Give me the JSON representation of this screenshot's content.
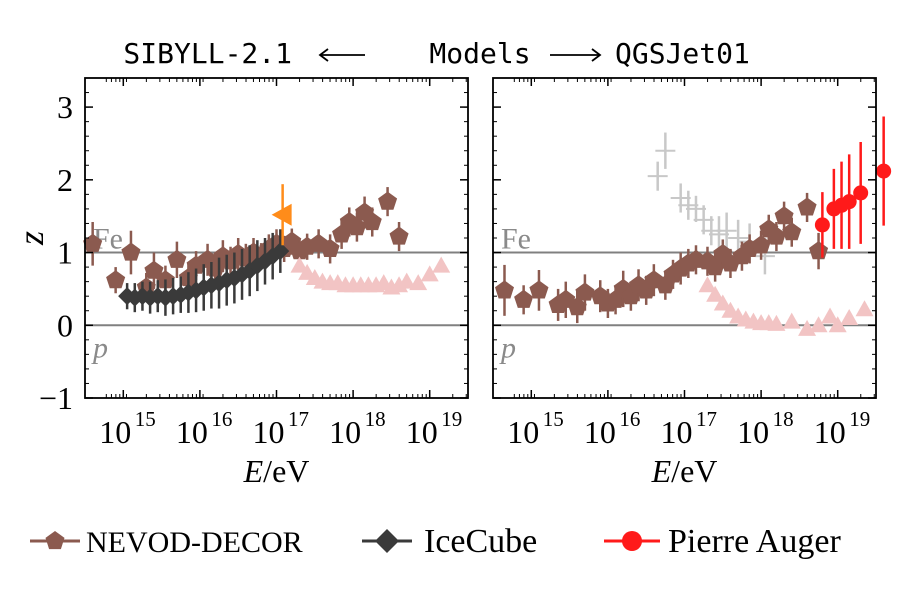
{
  "header": {
    "left_model": "SIBYLL-2.1",
    "center": "Models",
    "right_model": "QGSJet01"
  },
  "colors": {
    "nevod": "#8B5A4F",
    "icecube": "#3a3a3a",
    "auger": "#ff1a1a",
    "orange": "#ff8c1a",
    "faint_triangles": "#f2c4c4",
    "faint_crosses": "#c8c8c8",
    "reference_lines": "#808080"
  },
  "legend": {
    "items": [
      {
        "label": "NEVOD-DECOR",
        "marker": "pentagon",
        "color": "#8B5A4F"
      },
      {
        "label": "IceCube",
        "marker": "diamond",
        "color": "#3a3a3a"
      },
      {
        "label": "Pierre Auger",
        "marker": "circle",
        "color": "#ff1a1a"
      }
    ]
  },
  "chart_data": [
    {
      "type": "scatter",
      "panel": "SIBYLL-2.1",
      "ylabel": "z",
      "xlabel_italic": "E",
      "xlabel_unit": "/eV",
      "x_scale": "log",
      "xlim_log10": [
        14.5,
        19.5
      ],
      "ylim": [
        -1,
        3.4
      ],
      "x_ticks": [
        {
          "base": "10",
          "exp": "15"
        },
        {
          "base": "10",
          "exp": "16"
        },
        {
          "base": "10",
          "exp": "17"
        },
        {
          "base": "10",
          "exp": "18"
        },
        {
          "base": "10",
          "exp": "19"
        }
      ],
      "x_tick_values_log10": [
        15,
        16,
        17,
        18,
        19
      ],
      "y_ticks": [
        "−1",
        "0",
        "1",
        "2",
        "3"
      ],
      "y_tick_values": [
        -1,
        0,
        1,
        2,
        3
      ],
      "reference_lines": [
        {
          "y": 1,
          "label": "Fe"
        },
        {
          "y": 0,
          "label": "p"
        }
      ],
      "series": [
        {
          "name": "NEVOD-DECOR",
          "marker": "pentagon",
          "color": "#8B5A4F",
          "points": [
            [
              14.6,
              1.12,
              0.3
            ],
            [
              14.9,
              0.62,
              0.18
            ],
            [
              15.1,
              1.0,
              0.3
            ],
            [
              15.3,
              0.52,
              0.2
            ],
            [
              15.4,
              0.75,
              0.25
            ],
            [
              15.55,
              0.62,
              0.2
            ],
            [
              15.7,
              0.9,
              0.25
            ],
            [
              15.85,
              0.65,
              0.2
            ],
            [
              15.95,
              0.82,
              0.2
            ],
            [
              16.1,
              0.9,
              0.22
            ],
            [
              16.2,
              0.78,
              0.2
            ],
            [
              16.3,
              0.95,
              0.22
            ],
            [
              16.4,
              0.88,
              0.2
            ],
            [
              16.5,
              0.98,
              0.22
            ],
            [
              16.6,
              0.92,
              0.2
            ],
            [
              16.7,
              1.0,
              0.2
            ],
            [
              16.8,
              0.95,
              0.18
            ],
            [
              16.9,
              1.05,
              0.2
            ],
            [
              17.0,
              1.12,
              0.2
            ],
            [
              17.1,
              1.05,
              0.18
            ],
            [
              17.2,
              1.15,
              0.18
            ],
            [
              17.3,
              1.02,
              0.18
            ],
            [
              17.4,
              1.08,
              0.18
            ],
            [
              17.55,
              1.12,
              0.2
            ],
            [
              17.7,
              1.05,
              0.2
            ],
            [
              17.85,
              1.25,
              0.2
            ],
            [
              17.95,
              1.42,
              0.2
            ],
            [
              18.05,
              1.35,
              0.2
            ],
            [
              18.15,
              1.55,
              0.22
            ],
            [
              18.25,
              1.42,
              0.2
            ],
            [
              18.45,
              1.7,
              0.2
            ],
            [
              18.6,
              1.22,
              0.2
            ]
          ]
        },
        {
          "name": "IceCube",
          "marker": "diamond",
          "color": "#3a3a3a",
          "points": [
            [
              15.05,
              0.4,
              0.18
            ],
            [
              15.15,
              0.38,
              0.2
            ],
            [
              15.25,
              0.4,
              0.2
            ],
            [
              15.35,
              0.38,
              0.22
            ],
            [
              15.45,
              0.4,
              0.22
            ],
            [
              15.55,
              0.38,
              0.25
            ],
            [
              15.65,
              0.4,
              0.25
            ],
            [
              15.75,
              0.42,
              0.25
            ],
            [
              15.85,
              0.45,
              0.28
            ],
            [
              15.95,
              0.48,
              0.3
            ],
            [
              16.05,
              0.52,
              0.32
            ],
            [
              16.15,
              0.55,
              0.32
            ],
            [
              16.25,
              0.58,
              0.35
            ],
            [
              16.35,
              0.62,
              0.35
            ],
            [
              16.45,
              0.65,
              0.35
            ],
            [
              16.55,
              0.7,
              0.35
            ],
            [
              16.65,
              0.75,
              0.35
            ],
            [
              16.75,
              0.82,
              0.35
            ],
            [
              16.85,
              0.88,
              0.32
            ],
            [
              16.95,
              0.95,
              0.32
            ],
            [
              17.05,
              1.02,
              0.3
            ]
          ]
        },
        {
          "marker": "triangle-left",
          "color": "#ff8c1a",
          "points": [
            [
              17.08,
              1.52,
              0.42
            ]
          ]
        },
        {
          "marker": "triangle",
          "color": "#f2c4c4",
          "points": [
            [
              17.3,
              0.82
            ],
            [
              17.4,
              0.72
            ],
            [
              17.5,
              0.65
            ],
            [
              17.6,
              0.6
            ],
            [
              17.7,
              0.58
            ],
            [
              17.8,
              0.58
            ],
            [
              17.9,
              0.55
            ],
            [
              18.0,
              0.55
            ],
            [
              18.1,
              0.55
            ],
            [
              18.2,
              0.55
            ],
            [
              18.3,
              0.55
            ],
            [
              18.4,
              0.58
            ],
            [
              18.5,
              0.52
            ],
            [
              18.6,
              0.55
            ],
            [
              18.7,
              0.6
            ],
            [
              18.85,
              0.58
            ],
            [
              19.0,
              0.7
            ],
            [
              19.15,
              0.82
            ]
          ]
        }
      ]
    },
    {
      "type": "scatter",
      "panel": "QGSJet01",
      "xlabel_italic": "E",
      "xlabel_unit": "/eV",
      "x_scale": "log",
      "xlim_log10": [
        14.5,
        19.5
      ],
      "ylim": [
        -1,
        3.4
      ],
      "x_ticks": [
        {
          "base": "10",
          "exp": "15"
        },
        {
          "base": "10",
          "exp": "16"
        },
        {
          "base": "10",
          "exp": "17"
        },
        {
          "base": "10",
          "exp": "18"
        },
        {
          "base": "10",
          "exp": "19"
        }
      ],
      "x_tick_values_log10": [
        15,
        16,
        17,
        18,
        19
      ],
      "y_tick_values": [
        -1,
        0,
        1,
        2,
        3
      ],
      "reference_lines": [
        {
          "y": 1,
          "label": "Fe"
        },
        {
          "y": 0,
          "label": "p"
        }
      ],
      "series": [
        {
          "marker": "cross",
          "color": "#c8c8c8",
          "points": [
            [
              16.65,
              2.05,
              0.2
            ],
            [
              16.75,
              2.4,
              0.25
            ],
            [
              16.95,
              1.75,
              0.2
            ],
            [
              17.05,
              1.65,
              0.2
            ],
            [
              17.15,
              1.6,
              0.18
            ],
            [
              17.25,
              1.45,
              0.2
            ],
            [
              17.35,
              1.3,
              0.2
            ],
            [
              17.45,
              1.25,
              0.25
            ],
            [
              17.55,
              1.3,
              0.25
            ],
            [
              17.7,
              1.2,
              0.25
            ],
            [
              17.85,
              1.15,
              0.25
            ],
            [
              18.05,
              0.95,
              0.25
            ]
          ]
        },
        {
          "marker": "triangle",
          "color": "#f2c4c4",
          "points": [
            [
              17.3,
              0.55
            ],
            [
              17.4,
              0.42
            ],
            [
              17.5,
              0.3
            ],
            [
              17.6,
              0.2
            ],
            [
              17.7,
              0.12
            ],
            [
              17.8,
              0.08
            ],
            [
              17.9,
              0.05
            ],
            [
              18.0,
              0.03
            ],
            [
              18.1,
              0.03
            ],
            [
              18.2,
              0.02
            ],
            [
              18.4,
              0.05
            ],
            [
              18.6,
              -0.05
            ],
            [
              18.75,
              0.0
            ],
            [
              18.9,
              0.12
            ],
            [
              19.0,
              0.0
            ],
            [
              19.15,
              0.1
            ],
            [
              19.35,
              0.22
            ]
          ]
        },
        {
          "name": "NEVOD-DECOR",
          "marker": "pentagon",
          "color": "#8B5A4F",
          "points": [
            [
              14.65,
              0.48,
              0.35
            ],
            [
              14.9,
              0.35,
              0.2
            ],
            [
              15.1,
              0.48,
              0.28
            ],
            [
              15.35,
              0.28,
              0.22
            ],
            [
              15.45,
              0.35,
              0.25
            ],
            [
              15.6,
              0.25,
              0.22
            ],
            [
              15.7,
              0.45,
              0.25
            ],
            [
              15.9,
              0.4,
              0.22
            ],
            [
              16.0,
              0.3,
              0.2
            ],
            [
              16.1,
              0.35,
              0.2
            ],
            [
              16.2,
              0.5,
              0.25
            ],
            [
              16.3,
              0.4,
              0.2
            ],
            [
              16.4,
              0.55,
              0.22
            ],
            [
              16.5,
              0.48,
              0.2
            ],
            [
              16.6,
              0.62,
              0.22
            ],
            [
              16.75,
              0.55,
              0.2
            ],
            [
              16.85,
              0.7,
              0.2
            ],
            [
              16.95,
              0.78,
              0.22
            ],
            [
              17.05,
              0.85,
              0.2
            ],
            [
              17.15,
              0.9,
              0.2
            ],
            [
              17.3,
              0.88,
              0.2
            ],
            [
              17.4,
              0.8,
              0.2
            ],
            [
              17.5,
              0.98,
              0.2
            ],
            [
              17.6,
              0.85,
              0.2
            ],
            [
              17.75,
              0.95,
              0.2
            ],
            [
              17.85,
              1.05,
              0.2
            ],
            [
              18.0,
              1.1,
              0.2
            ],
            [
              18.1,
              1.32,
              0.2
            ],
            [
              18.2,
              1.22,
              0.2
            ],
            [
              18.3,
              1.5,
              0.2
            ],
            [
              18.4,
              1.28,
              0.2
            ],
            [
              18.6,
              1.62,
              0.2
            ],
            [
              18.75,
              1.02,
              0.25
            ]
          ]
        },
        {
          "name": "Pierre Auger",
          "marker": "circle",
          "color": "#ff1a1a",
          "points": [
            [
              18.8,
              1.38,
              0.45
            ],
            [
              18.95,
              1.6,
              0.55
            ],
            [
              19.05,
              1.65,
              0.6
            ],
            [
              19.15,
              1.7,
              0.65
            ],
            [
              19.3,
              1.82,
              0.7
            ],
            [
              19.6,
              2.12,
              0.75
            ]
          ]
        }
      ]
    }
  ]
}
